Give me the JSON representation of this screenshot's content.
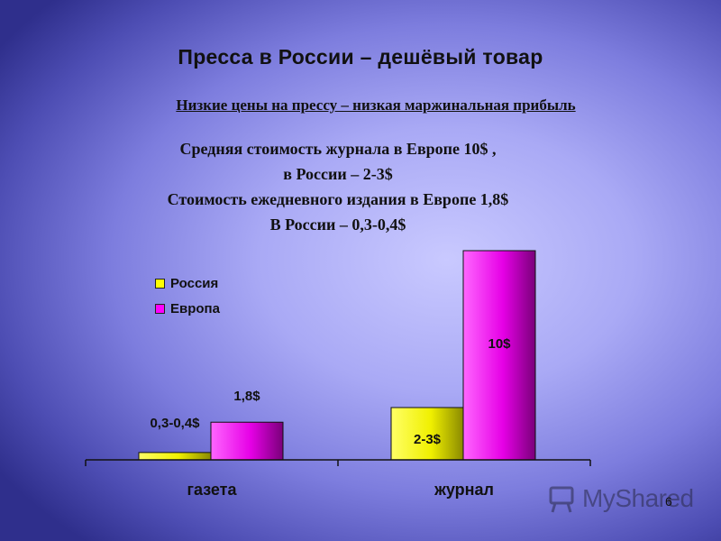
{
  "slide": {
    "title": "Пресса в России – дешёвый товар",
    "subtitle": "Низкие цены на прессу – низкая маржинальная прибыль",
    "lines": [
      "Средняя стоимость журнала в Европе 10$ ,",
      "в России – 2-3$",
      "Стоимость ежедневного издания в Европе 1,8$",
      "В России – 0,3-0,4$"
    ],
    "page_number": "6",
    "watermark": "MyShared"
  },
  "chart_data": {
    "type": "bar",
    "categories": [
      "газета",
      "журнал"
    ],
    "series": [
      {
        "name": "Россия",
        "color": "#ffff00",
        "values": [
          0.35,
          2.5
        ],
        "labels": [
          "0,3-0,4$",
          "2-3$"
        ]
      },
      {
        "name": "Европа",
        "color": "#ff00ff",
        "values": [
          1.8,
          10
        ],
        "labels": [
          "1,8$",
          "10$"
        ]
      }
    ],
    "ylim": [
      0,
      10
    ],
    "grid": false,
    "legend": "top-left"
  }
}
